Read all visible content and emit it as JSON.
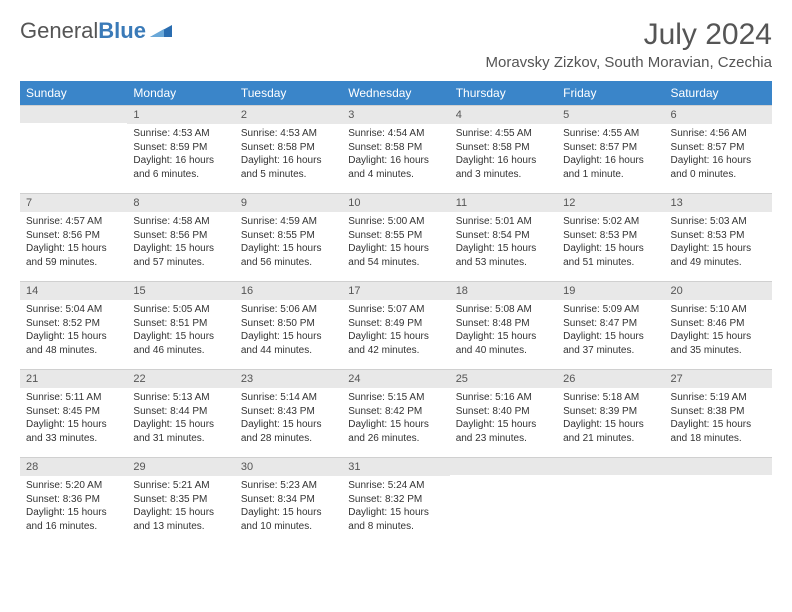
{
  "brand": {
    "part1": "General",
    "part2": "Blue"
  },
  "title": "July 2024",
  "location": "Moravsky Zizkov, South Moravian, Czechia",
  "colors": {
    "header_bg": "#3a85c9",
    "header_text": "#ffffff",
    "daynum_bg": "#e8e8e8",
    "text": "#333333",
    "brand_blue": "#2a6db0"
  },
  "days_of_week": [
    "Sunday",
    "Monday",
    "Tuesday",
    "Wednesday",
    "Thursday",
    "Friday",
    "Saturday"
  ],
  "weeks": [
    [
      {
        "n": "",
        "sr": "",
        "ss": "",
        "dl": ""
      },
      {
        "n": "1",
        "sr": "Sunrise: 4:53 AM",
        "ss": "Sunset: 8:59 PM",
        "dl": "Daylight: 16 hours and 6 minutes."
      },
      {
        "n": "2",
        "sr": "Sunrise: 4:53 AM",
        "ss": "Sunset: 8:58 PM",
        "dl": "Daylight: 16 hours and 5 minutes."
      },
      {
        "n": "3",
        "sr": "Sunrise: 4:54 AM",
        "ss": "Sunset: 8:58 PM",
        "dl": "Daylight: 16 hours and 4 minutes."
      },
      {
        "n": "4",
        "sr": "Sunrise: 4:55 AM",
        "ss": "Sunset: 8:58 PM",
        "dl": "Daylight: 16 hours and 3 minutes."
      },
      {
        "n": "5",
        "sr": "Sunrise: 4:55 AM",
        "ss": "Sunset: 8:57 PM",
        "dl": "Daylight: 16 hours and 1 minute."
      },
      {
        "n": "6",
        "sr": "Sunrise: 4:56 AM",
        "ss": "Sunset: 8:57 PM",
        "dl": "Daylight: 16 hours and 0 minutes."
      }
    ],
    [
      {
        "n": "7",
        "sr": "Sunrise: 4:57 AM",
        "ss": "Sunset: 8:56 PM",
        "dl": "Daylight: 15 hours and 59 minutes."
      },
      {
        "n": "8",
        "sr": "Sunrise: 4:58 AM",
        "ss": "Sunset: 8:56 PM",
        "dl": "Daylight: 15 hours and 57 minutes."
      },
      {
        "n": "9",
        "sr": "Sunrise: 4:59 AM",
        "ss": "Sunset: 8:55 PM",
        "dl": "Daylight: 15 hours and 56 minutes."
      },
      {
        "n": "10",
        "sr": "Sunrise: 5:00 AM",
        "ss": "Sunset: 8:55 PM",
        "dl": "Daylight: 15 hours and 54 minutes."
      },
      {
        "n": "11",
        "sr": "Sunrise: 5:01 AM",
        "ss": "Sunset: 8:54 PM",
        "dl": "Daylight: 15 hours and 53 minutes."
      },
      {
        "n": "12",
        "sr": "Sunrise: 5:02 AM",
        "ss": "Sunset: 8:53 PM",
        "dl": "Daylight: 15 hours and 51 minutes."
      },
      {
        "n": "13",
        "sr": "Sunrise: 5:03 AM",
        "ss": "Sunset: 8:53 PM",
        "dl": "Daylight: 15 hours and 49 minutes."
      }
    ],
    [
      {
        "n": "14",
        "sr": "Sunrise: 5:04 AM",
        "ss": "Sunset: 8:52 PM",
        "dl": "Daylight: 15 hours and 48 minutes."
      },
      {
        "n": "15",
        "sr": "Sunrise: 5:05 AM",
        "ss": "Sunset: 8:51 PM",
        "dl": "Daylight: 15 hours and 46 minutes."
      },
      {
        "n": "16",
        "sr": "Sunrise: 5:06 AM",
        "ss": "Sunset: 8:50 PM",
        "dl": "Daylight: 15 hours and 44 minutes."
      },
      {
        "n": "17",
        "sr": "Sunrise: 5:07 AM",
        "ss": "Sunset: 8:49 PM",
        "dl": "Daylight: 15 hours and 42 minutes."
      },
      {
        "n": "18",
        "sr": "Sunrise: 5:08 AM",
        "ss": "Sunset: 8:48 PM",
        "dl": "Daylight: 15 hours and 40 minutes."
      },
      {
        "n": "19",
        "sr": "Sunrise: 5:09 AM",
        "ss": "Sunset: 8:47 PM",
        "dl": "Daylight: 15 hours and 37 minutes."
      },
      {
        "n": "20",
        "sr": "Sunrise: 5:10 AM",
        "ss": "Sunset: 8:46 PM",
        "dl": "Daylight: 15 hours and 35 minutes."
      }
    ],
    [
      {
        "n": "21",
        "sr": "Sunrise: 5:11 AM",
        "ss": "Sunset: 8:45 PM",
        "dl": "Daylight: 15 hours and 33 minutes."
      },
      {
        "n": "22",
        "sr": "Sunrise: 5:13 AM",
        "ss": "Sunset: 8:44 PM",
        "dl": "Daylight: 15 hours and 31 minutes."
      },
      {
        "n": "23",
        "sr": "Sunrise: 5:14 AM",
        "ss": "Sunset: 8:43 PM",
        "dl": "Daylight: 15 hours and 28 minutes."
      },
      {
        "n": "24",
        "sr": "Sunrise: 5:15 AM",
        "ss": "Sunset: 8:42 PM",
        "dl": "Daylight: 15 hours and 26 minutes."
      },
      {
        "n": "25",
        "sr": "Sunrise: 5:16 AM",
        "ss": "Sunset: 8:40 PM",
        "dl": "Daylight: 15 hours and 23 minutes."
      },
      {
        "n": "26",
        "sr": "Sunrise: 5:18 AM",
        "ss": "Sunset: 8:39 PM",
        "dl": "Daylight: 15 hours and 21 minutes."
      },
      {
        "n": "27",
        "sr": "Sunrise: 5:19 AM",
        "ss": "Sunset: 8:38 PM",
        "dl": "Daylight: 15 hours and 18 minutes."
      }
    ],
    [
      {
        "n": "28",
        "sr": "Sunrise: 5:20 AM",
        "ss": "Sunset: 8:36 PM",
        "dl": "Daylight: 15 hours and 16 minutes."
      },
      {
        "n": "29",
        "sr": "Sunrise: 5:21 AM",
        "ss": "Sunset: 8:35 PM",
        "dl": "Daylight: 15 hours and 13 minutes."
      },
      {
        "n": "30",
        "sr": "Sunrise: 5:23 AM",
        "ss": "Sunset: 8:34 PM",
        "dl": "Daylight: 15 hours and 10 minutes."
      },
      {
        "n": "31",
        "sr": "Sunrise: 5:24 AM",
        "ss": "Sunset: 8:32 PM",
        "dl": "Daylight: 15 hours and 8 minutes."
      },
      {
        "n": "",
        "sr": "",
        "ss": "",
        "dl": ""
      },
      {
        "n": "",
        "sr": "",
        "ss": "",
        "dl": ""
      },
      {
        "n": "",
        "sr": "",
        "ss": "",
        "dl": ""
      }
    ]
  ]
}
